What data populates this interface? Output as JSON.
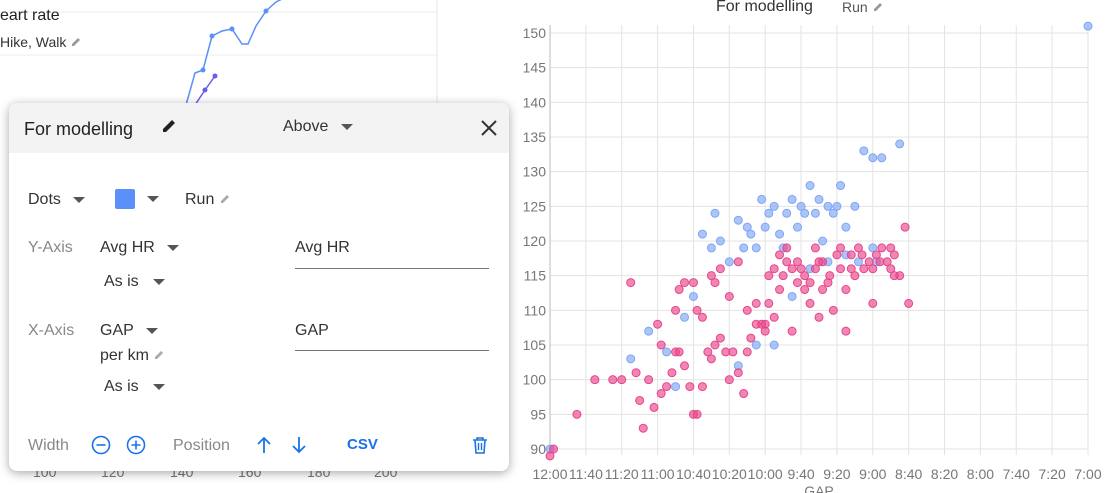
{
  "background_chart": {
    "title": "eart rate",
    "series": "Hike, Walk",
    "x_ticks": [
      "100",
      "120",
      "140",
      "160",
      "180",
      "200"
    ]
  },
  "panel": {
    "title": "For modelling",
    "position_select": "Above",
    "chart_type": "Dots",
    "color": "#5b8ff9",
    "series_name": "Run",
    "y_axis": {
      "label": "Y-Axis",
      "metric": "Avg HR",
      "transform": "As is",
      "title_value": "Avg HR"
    },
    "x_axis": {
      "label": "X-Axis",
      "metric": "GAP",
      "unit": "per km",
      "transform": "As is",
      "title_value": "GAP"
    },
    "width_label": "Width",
    "position_label": "Position",
    "csv_label": "CSV"
  },
  "chart_data": {
    "type": "scatter",
    "title": "For modelling",
    "series_label": "Run",
    "xlabel": "GAP",
    "ylabel": "",
    "x_ticks": [
      "12:00",
      "11:40",
      "11:20",
      "11:00",
      "10:40",
      "10:20",
      "10:00",
      "9:40",
      "9:20",
      "9:00",
      "8:40",
      "8:20",
      "8:00",
      "7:40",
      "7:20",
      "7:00"
    ],
    "y_ticks": [
      90,
      95,
      100,
      105,
      110,
      115,
      120,
      125,
      130,
      135,
      140,
      145,
      150
    ],
    "xlim": [
      "12:00",
      "7:00"
    ],
    "ylim": [
      89,
      151
    ],
    "grid": true,
    "colors": {
      "blue": "#7ea6f4",
      "pink": "#e8458b"
    },
    "series": [
      {
        "color": "blue",
        "points": [
          [
            "12:00",
            90
          ],
          [
            "7:00",
            151
          ],
          [
            "8:45",
            134
          ],
          [
            "8:55",
            132
          ],
          [
            "9:00",
            132
          ],
          [
            "9:05",
            133
          ],
          [
            "9:10",
            125
          ],
          [
            "9:15",
            122
          ],
          [
            "9:18",
            128
          ],
          [
            "9:20",
            125
          ],
          [
            "9:22",
            124
          ],
          [
            "9:25",
            125
          ],
          [
            "9:30",
            126
          ],
          [
            "9:32",
            124
          ],
          [
            "9:35",
            128
          ],
          [
            "9:38",
            124
          ],
          [
            "9:40",
            125
          ],
          [
            "9:42",
            122
          ],
          [
            "9:45",
            126
          ],
          [
            "9:48",
            124
          ],
          [
            "9:50",
            119
          ],
          [
            "9:52",
            121
          ],
          [
            "9:55",
            125
          ],
          [
            "9:58",
            124
          ],
          [
            "10:00",
            122
          ],
          [
            "10:02",
            126
          ],
          [
            "10:05",
            119
          ],
          [
            "10:08",
            121
          ],
          [
            "10:10",
            122
          ],
          [
            "10:12",
            119
          ],
          [
            "10:15",
            123
          ],
          [
            "10:20",
            117
          ],
          [
            "10:25",
            120
          ],
          [
            "10:28",
            124
          ],
          [
            "10:30",
            119
          ],
          [
            "10:35",
            121
          ],
          [
            "10:40",
            112
          ],
          [
            "10:45",
            109
          ],
          [
            "11:05",
            107
          ],
          [
            "11:15",
            103
          ],
          [
            "10:55",
            104
          ],
          [
            "10:50",
            99
          ],
          [
            "10:15",
            102
          ],
          [
            "10:05",
            105
          ],
          [
            "9:55",
            105
          ],
          [
            "9:45",
            112
          ],
          [
            "9:35",
            116
          ],
          [
            "9:25",
            117
          ],
          [
            "9:15",
            118
          ],
          [
            "9:00",
            119
          ],
          [
            "8:58",
            117
          ],
          [
            "9:08",
            117
          ],
          [
            "9:28",
            120
          ]
        ]
      },
      {
        "color": "pink",
        "points": [
          [
            "12:00",
            89
          ],
          [
            "11:58",
            90
          ],
          [
            "11:45",
            95
          ],
          [
            "11:35",
            100
          ],
          [
            "11:25",
            100
          ],
          [
            "11:10",
            97
          ],
          [
            "11:08",
            93
          ],
          [
            "11:05",
            100
          ],
          [
            "11:02",
            96
          ],
          [
            "10:58",
            98
          ],
          [
            "10:55",
            99
          ],
          [
            "10:52",
            101
          ],
          [
            "10:50",
            104
          ],
          [
            "10:48",
            104
          ],
          [
            "10:45",
            102
          ],
          [
            "10:42",
            99
          ],
          [
            "10:40",
            95
          ],
          [
            "10:38",
            95
          ],
          [
            "10:35",
            99
          ],
          [
            "10:32",
            104
          ],
          [
            "10:30",
            103
          ],
          [
            "10:28",
            105
          ],
          [
            "10:25",
            106
          ],
          [
            "10:22",
            104
          ],
          [
            "10:20",
            100
          ],
          [
            "10:18",
            104
          ],
          [
            "10:15",
            101
          ],
          [
            "10:12",
            98
          ],
          [
            "10:10",
            104
          ],
          [
            "10:08",
            106
          ],
          [
            "10:05",
            108
          ],
          [
            "10:02",
            108
          ],
          [
            "10:00",
            107
          ],
          [
            "9:58",
            111
          ],
          [
            "9:55",
            109
          ],
          [
            "9:52",
            113
          ],
          [
            "9:50",
            115
          ],
          [
            "9:48",
            117
          ],
          [
            "9:45",
            116
          ],
          [
            "9:42",
            114
          ],
          [
            "9:40",
            116
          ],
          [
            "9:38",
            113
          ],
          [
            "9:35",
            114
          ],
          [
            "9:32",
            116
          ],
          [
            "9:30",
            117
          ],
          [
            "9:28",
            113
          ],
          [
            "9:25",
            114
          ],
          [
            "9:22",
            110
          ],
          [
            "9:20",
            118
          ],
          [
            "9:18",
            116
          ],
          [
            "9:15",
            113
          ],
          [
            "9:12",
            118
          ],
          [
            "9:10",
            115
          ],
          [
            "9:08",
            119
          ],
          [
            "9:05",
            116
          ],
          [
            "9:02",
            117
          ],
          [
            "9:00",
            111
          ],
          [
            "8:58",
            118
          ],
          [
            "8:55",
            119
          ],
          [
            "8:52",
            117
          ],
          [
            "8:50",
            116
          ],
          [
            "8:48",
            118
          ],
          [
            "8:45",
            115
          ],
          [
            "8:42",
            122
          ],
          [
            "8:40",
            111
          ],
          [
            "9:30",
            109
          ],
          [
            "9:45",
            107
          ],
          [
            "10:00",
            108
          ],
          [
            "10:10",
            110
          ],
          [
            "10:20",
            112
          ],
          [
            "10:30",
            115
          ],
          [
            "10:40",
            114
          ],
          [
            "10:50",
            110
          ],
          [
            "11:00",
            108
          ],
          [
            "11:15",
            114
          ],
          [
            "11:20",
            100
          ],
          [
            "10:35",
            109
          ],
          [
            "9:55",
            116
          ],
          [
            "9:35",
            111
          ],
          [
            "9:15",
            107
          ],
          [
            "8:50",
            119
          ],
          [
            "10:45",
            114
          ],
          [
            "10:25",
            116
          ],
          [
            "10:15",
            117
          ],
          [
            "10:05",
            111
          ],
          [
            "9:58",
            115
          ],
          [
            "9:52",
            118
          ],
          [
            "9:48",
            119
          ],
          [
            "9:42",
            117
          ],
          [
            "9:38",
            115
          ],
          [
            "9:32",
            119
          ],
          [
            "9:28",
            117
          ],
          [
            "9:24",
            115
          ],
          [
            "9:18",
            119
          ],
          [
            "9:12",
            116
          ],
          [
            "9:06",
            118
          ],
          [
            "9:00",
            116
          ],
          [
            "8:56",
            117
          ],
          [
            "8:48",
            115
          ],
          [
            "10:28",
            114
          ],
          [
            "10:38",
            110
          ],
          [
            "10:48",
            113
          ],
          [
            "10:58",
            105
          ],
          [
            "11:12",
            101
          ]
        ]
      }
    ]
  }
}
